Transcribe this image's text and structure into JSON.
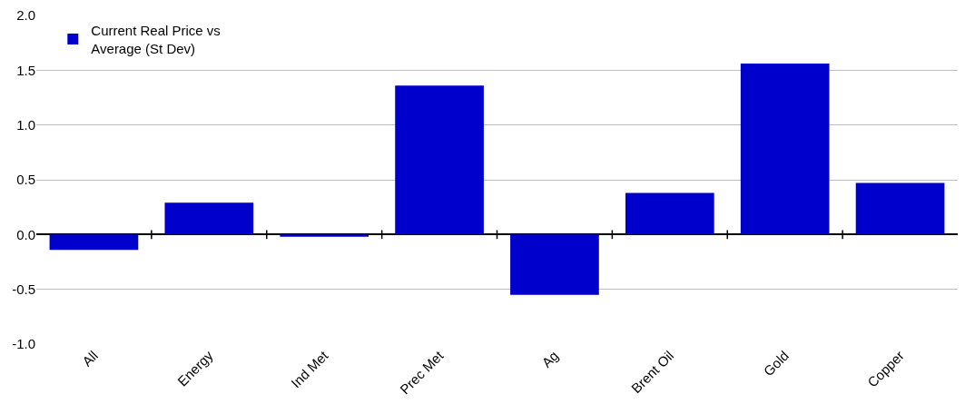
{
  "chart_data": {
    "type": "bar",
    "categories": [
      "All",
      "Energy",
      "Ind Met",
      "Prec Met",
      "Ag",
      "Brent Oil",
      "Gold",
      "Copper"
    ],
    "series": [
      {
        "name": "Current Real Price vs Average (St Dev)",
        "color": "#0000cc",
        "values": [
          -0.14,
          0.29,
          -0.02,
          1.36,
          -0.55,
          0.38,
          1.56,
          0.47
        ]
      }
    ],
    "ylim": [
      -1.0,
      2.0
    ],
    "yticks": [
      {
        "value": -1.0,
        "label": "-1.0"
      },
      {
        "value": -0.5,
        "label": "-0.5"
      },
      {
        "value": 0.0,
        "label": "0.0"
      },
      {
        "value": 0.5,
        "label": "0.5"
      },
      {
        "value": 1.0,
        "label": "1.0"
      },
      {
        "value": 1.5,
        "label": "1.5"
      },
      {
        "value": 2.0,
        "label": "2.0"
      }
    ],
    "grid": "y",
    "legend": "top left"
  }
}
